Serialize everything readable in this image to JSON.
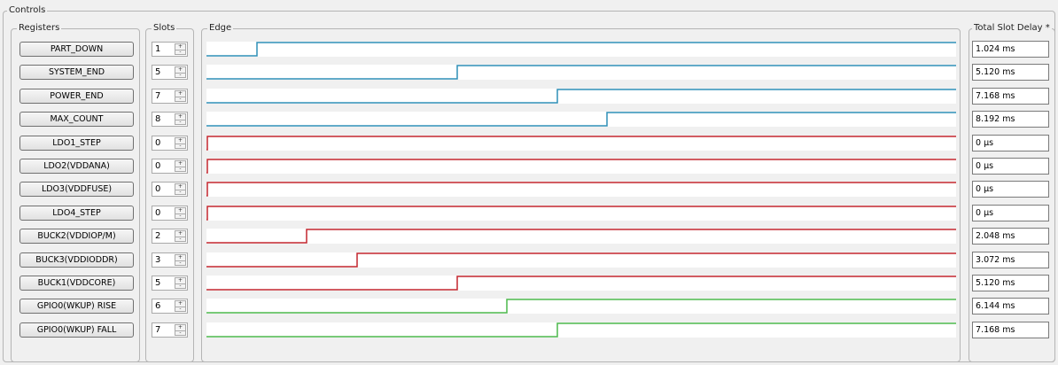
{
  "panels": {
    "controls": "Controls",
    "registers": "Registers",
    "slots": "Slots",
    "edge": "Edge",
    "total": "Total Slot Delay *"
  },
  "colors": {
    "teal": "#2e8fb7",
    "red": "#c4262e",
    "green": "#4cb84c"
  },
  "rows": [
    {
      "register": "PART_DOWN",
      "slot": "1",
      "delay": "1.024 ms",
      "color": "teal"
    },
    {
      "register": "SYSTEM_END",
      "slot": "5",
      "delay": "5.120 ms",
      "color": "teal"
    },
    {
      "register": "POWER_END",
      "slot": "7",
      "delay": "7.168 ms",
      "color": "teal"
    },
    {
      "register": "MAX_COUNT",
      "slot": "8",
      "delay": "8.192 ms",
      "color": "teal"
    },
    {
      "register": "LDO1_STEP",
      "slot": "0",
      "delay": "0 µs",
      "color": "red"
    },
    {
      "register": "LDO2(VDDANA)",
      "slot": "0",
      "delay": "0 µs",
      "color": "red"
    },
    {
      "register": "LDO3(VDDFUSE)",
      "slot": "0",
      "delay": "0 µs",
      "color": "red"
    },
    {
      "register": "LDO4_STEP",
      "slot": "0",
      "delay": "0 µs",
      "color": "red"
    },
    {
      "register": "BUCK2(VDDIOP/M)",
      "slot": "2",
      "delay": "2.048 ms",
      "color": "red"
    },
    {
      "register": "BUCK3(VDDIODDR)",
      "slot": "3",
      "delay": "3.072 ms",
      "color": "red"
    },
    {
      "register": "BUCK1(VDDCORE)",
      "slot": "5",
      "delay": "5.120 ms",
      "color": "red"
    },
    {
      "register": "GPIO0(WKUP) RISE",
      "slot": "6",
      "delay": "6.144 ms",
      "color": "green"
    },
    {
      "register": "GPIO0(WKUP) FALL",
      "slot": "7",
      "delay": "7.168 ms",
      "color": "green"
    }
  ]
}
